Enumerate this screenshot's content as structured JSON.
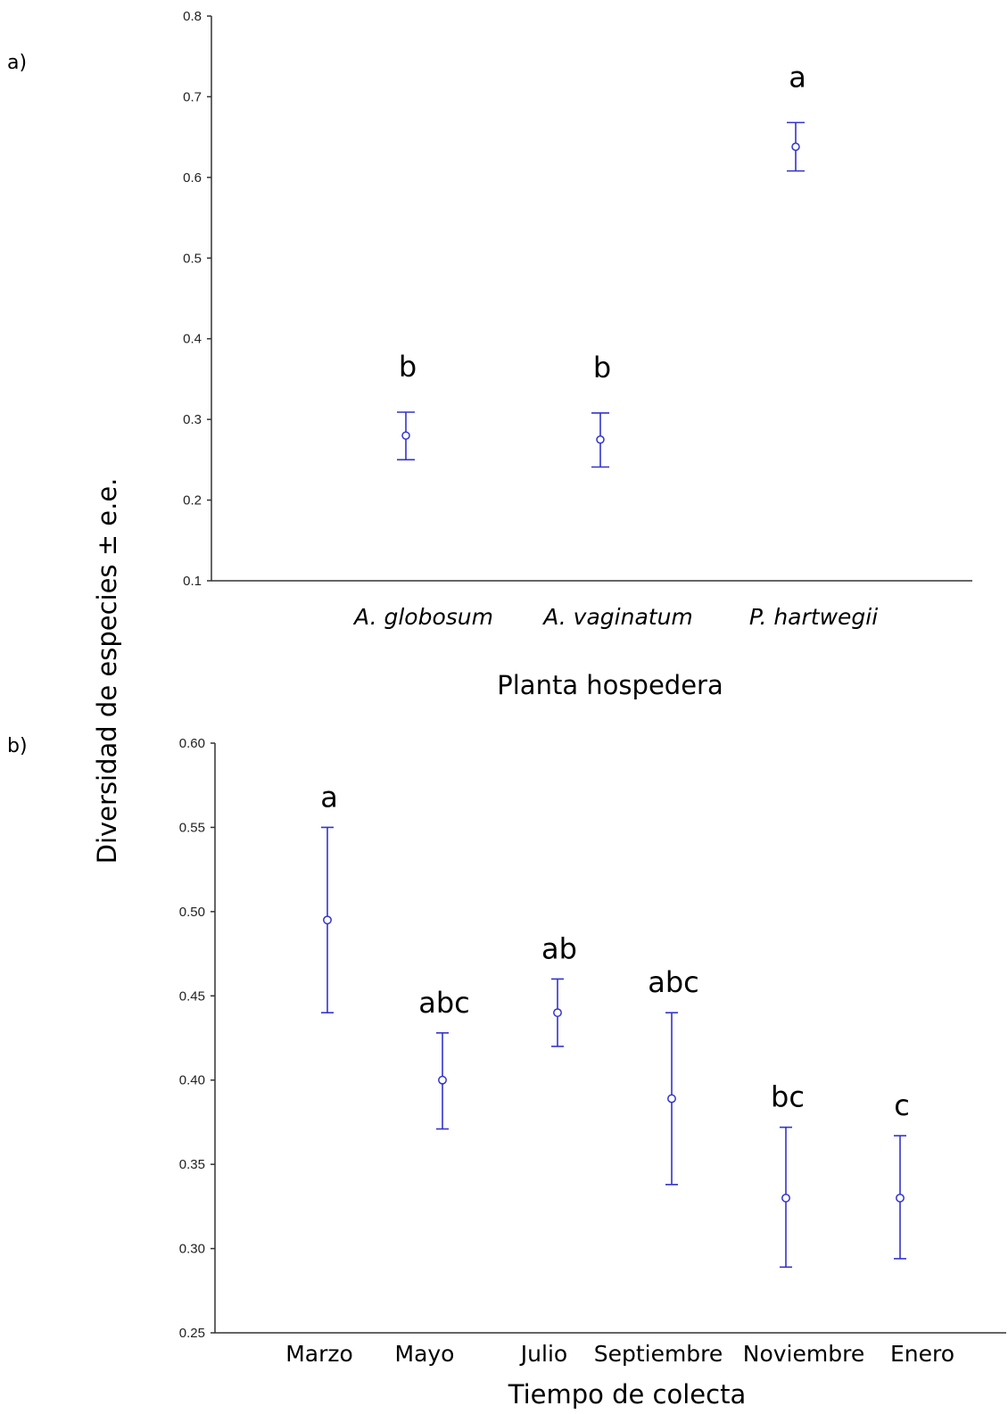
{
  "y_axis_title": "Diversidad de especies ± e.e.",
  "chart_data": [
    {
      "type": "scatter",
      "panel_label": "a)",
      "xlabel": "Planta hospedera",
      "categories": [
        "A. globosum",
        "A. vaginatum",
        "P. hartwegii"
      ],
      "category_style": "italic",
      "means": [
        0.28,
        0.275,
        0.638
      ],
      "lower": [
        0.25,
        0.241,
        0.608
      ],
      "upper": [
        0.309,
        0.308,
        0.668
      ],
      "letters": [
        "b",
        "b",
        "a"
      ],
      "ylim": [
        0.1,
        0.8
      ],
      "yticks": [
        0.1,
        0.2,
        0.3,
        0.4,
        0.5,
        0.6,
        0.7,
        0.8
      ],
      "ytick_labels": [
        "0.1",
        "0.2",
        "0.3",
        "0.4",
        "0.5",
        "0.6",
        "0.7",
        "0.8"
      ],
      "grid": false,
      "color": "#3333cc"
    },
    {
      "type": "scatter",
      "panel_label": "b)",
      "xlabel": "Tiempo de colecta",
      "categories": [
        "Marzo",
        "Mayo",
        "Julio",
        "Septiembre",
        "Noviembre",
        "Enero"
      ],
      "category_style": "normal",
      "means": [
        0.495,
        0.4,
        0.44,
        0.389,
        0.33,
        0.33
      ],
      "lower": [
        0.44,
        0.371,
        0.42,
        0.338,
        0.289,
        0.294
      ],
      "upper": [
        0.55,
        0.428,
        0.46,
        0.44,
        0.372,
        0.367
      ],
      "letters": [
        "a",
        "abc",
        "ab",
        "abc",
        "bc",
        "c"
      ],
      "ylim": [
        0.25,
        0.6
      ],
      "yticks": [
        0.25,
        0.3,
        0.35,
        0.4,
        0.45,
        0.5,
        0.55,
        0.6
      ],
      "ytick_labels": [
        "0.25",
        "0.30",
        "0.35",
        "0.40",
        "0.45",
        "0.50",
        "0.55",
        "0.60"
      ],
      "grid": false,
      "color": "#3333cc"
    }
  ]
}
